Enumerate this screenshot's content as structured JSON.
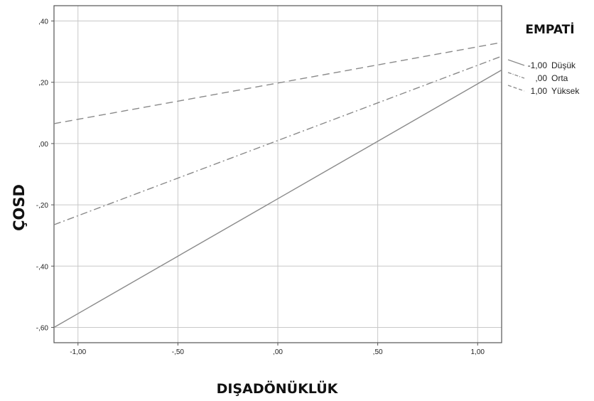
{
  "chart_data": {
    "type": "line",
    "title": "",
    "xlabel": "DIŞADÖNÜKLÜK",
    "ylabel": "ÇOSD",
    "xlim": [
      -1.12,
      1.12
    ],
    "ylim": [
      -0.65,
      0.45
    ],
    "x_ticks": [
      -1.0,
      -0.5,
      0.0,
      0.5,
      1.0
    ],
    "x_tick_labels": [
      "-1,00",
      "-,50",
      ",00",
      ",50",
      "1,00"
    ],
    "y_ticks": [
      -0.6,
      -0.4,
      -0.2,
      0.0,
      0.2,
      0.4
    ],
    "y_tick_labels": [
      "-,60",
      "-,40",
      "-,20",
      ",00",
      ",20",
      ",40"
    ],
    "grid": true,
    "legend_position": "right",
    "legend_title": "EMPATİ",
    "series": [
      {
        "name": "Düşük",
        "legend_value": "-1,00",
        "style": "solid",
        "x": [
          -1.12,
          1.12
        ],
        "y": [
          -0.6,
          0.24
        ]
      },
      {
        "name": "Orta",
        "legend_value": ",00",
        "style": "dashdot",
        "x": [
          -1.12,
          1.12
        ],
        "y": [
          -0.265,
          0.285
        ]
      },
      {
        "name": "Yüksek",
        "legend_value": "1,00",
        "style": "dashed",
        "x": [
          -1.12,
          1.12
        ],
        "y": [
          0.065,
          0.33
        ]
      }
    ]
  }
}
